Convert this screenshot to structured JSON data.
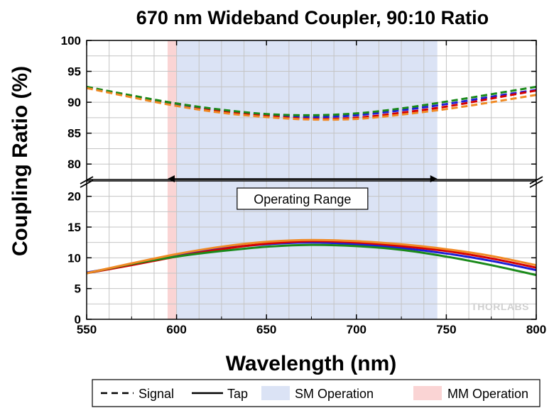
{
  "chart_data": {
    "type": "line",
    "title": "670 nm Wideband Coupler, 90:10 Ratio",
    "xlabel": "Wavelength (nm)",
    "ylabel": "Coupling Ratio (%)",
    "xlim": [
      550,
      800
    ],
    "x_ticks": [
      "550",
      "600",
      "650",
      "700",
      "750",
      "800"
    ],
    "y_axis_break": true,
    "ylim_upper": [
      77.5,
      100
    ],
    "ylim_lower": [
      0,
      22.5
    ],
    "y_ticks_upper": [
      "80",
      "85",
      "90",
      "95",
      "100"
    ],
    "y_ticks_lower": [
      "0",
      "5",
      "10",
      "15",
      "20"
    ],
    "grid": true,
    "regions": [
      {
        "name": "SM Operation",
        "x_start": 600,
        "x_end": 745,
        "color": "#dbe3f5"
      },
      {
        "name": "MM Operation",
        "x_start": 595,
        "x_end": 600,
        "color": "#fad4d4"
      }
    ],
    "annotations": [
      {
        "text": "Operating Range",
        "x_start": 595,
        "x_end": 745,
        "y": 23,
        "style": "double-arrow"
      }
    ],
    "x": [
      550,
      575,
      600,
      625,
      650,
      675,
      700,
      725,
      750,
      775,
      800
    ],
    "series": [
      {
        "color": "#1f1fd6",
        "style": "dashed",
        "values": [
          92.4,
          91.0,
          89.6,
          88.6,
          88.0,
          87.6,
          87.9,
          88.7,
          89.7,
          90.9,
          92.0
        ]
      },
      {
        "color": "#d60000",
        "style": "dashed",
        "values": [
          92.4,
          91.0,
          89.8,
          88.6,
          87.8,
          87.3,
          87.5,
          88.3,
          89.3,
          90.6,
          91.9
        ]
      },
      {
        "color": "#1a8a1a",
        "style": "dashed",
        "values": [
          92.5,
          91.1,
          89.8,
          88.8,
          88.1,
          87.9,
          88.2,
          89.0,
          90.1,
          91.3,
          92.5
        ]
      },
      {
        "color": "#f08a24",
        "style": "dashed",
        "values": [
          92.3,
          90.8,
          89.4,
          88.3,
          87.6,
          87.2,
          87.3,
          88.0,
          88.9,
          90.0,
          91.2
        ]
      },
      {
        "color": "#1f1fd6",
        "style": "solid",
        "values": [
          7.6,
          8.9,
          10.3,
          11.5,
          12.2,
          12.5,
          12.2,
          11.6,
          10.7,
          9.5,
          8.0
        ]
      },
      {
        "color": "#d60000",
        "style": "solid",
        "values": [
          7.5,
          8.8,
          10.2,
          11.4,
          12.3,
          12.7,
          12.5,
          11.9,
          11.1,
          9.9,
          8.4
        ]
      },
      {
        "color": "#1a8a1a",
        "style": "solid",
        "values": [
          7.5,
          9.0,
          10.2,
          11.1,
          11.8,
          12.1,
          11.9,
          11.3,
          10.2,
          8.8,
          7.2
        ]
      },
      {
        "color": "#f08a24",
        "style": "solid",
        "values": [
          7.5,
          9.1,
          10.6,
          11.8,
          12.6,
          12.9,
          12.7,
          12.2,
          11.4,
          10.3,
          8.8
        ]
      }
    ],
    "legend": {
      "position": "bottom",
      "items": [
        {
          "label": "Signal",
          "type": "dashed-line"
        },
        {
          "label": "Tap",
          "type": "solid-line"
        },
        {
          "label": "SM Operation",
          "type": "swatch",
          "color": "#dbe3f5"
        },
        {
          "label": "MM Operation",
          "type": "swatch",
          "color": "#fad4d4"
        }
      ]
    },
    "brand": "THORLABS"
  }
}
